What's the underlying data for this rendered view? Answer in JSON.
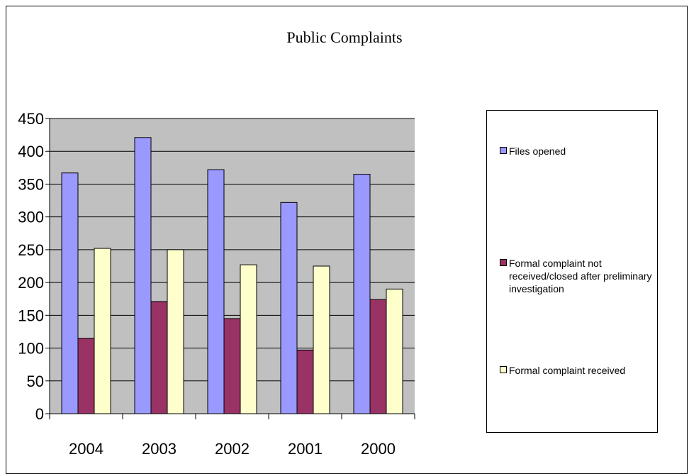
{
  "chart_data": {
    "type": "bar",
    "title": "Public Complaints",
    "categories": [
      "2004",
      "2003",
      "2002",
      "2001",
      "2000"
    ],
    "series": [
      {
        "name": "Files opened",
        "color": "#9999ff",
        "values": [
          367,
          421,
          372,
          322,
          365
        ]
      },
      {
        "name": "Formal complaint not received/closed after preliminary investigation",
        "color": "#993366",
        "values": [
          115,
          171,
          145,
          97,
          174
        ]
      },
      {
        "name": "Formal complaint received",
        "color": "#ffffcc",
        "values": [
          252,
          250,
          227,
          225,
          190
        ]
      }
    ],
    "ylim": [
      0,
      450
    ],
    "yticks": [
      0,
      50,
      100,
      150,
      200,
      250,
      300,
      350,
      400,
      450
    ],
    "xlabel": "",
    "ylabel": "",
    "grid": true,
    "plot_background": "#c0c0c0",
    "legend_position": "right"
  }
}
